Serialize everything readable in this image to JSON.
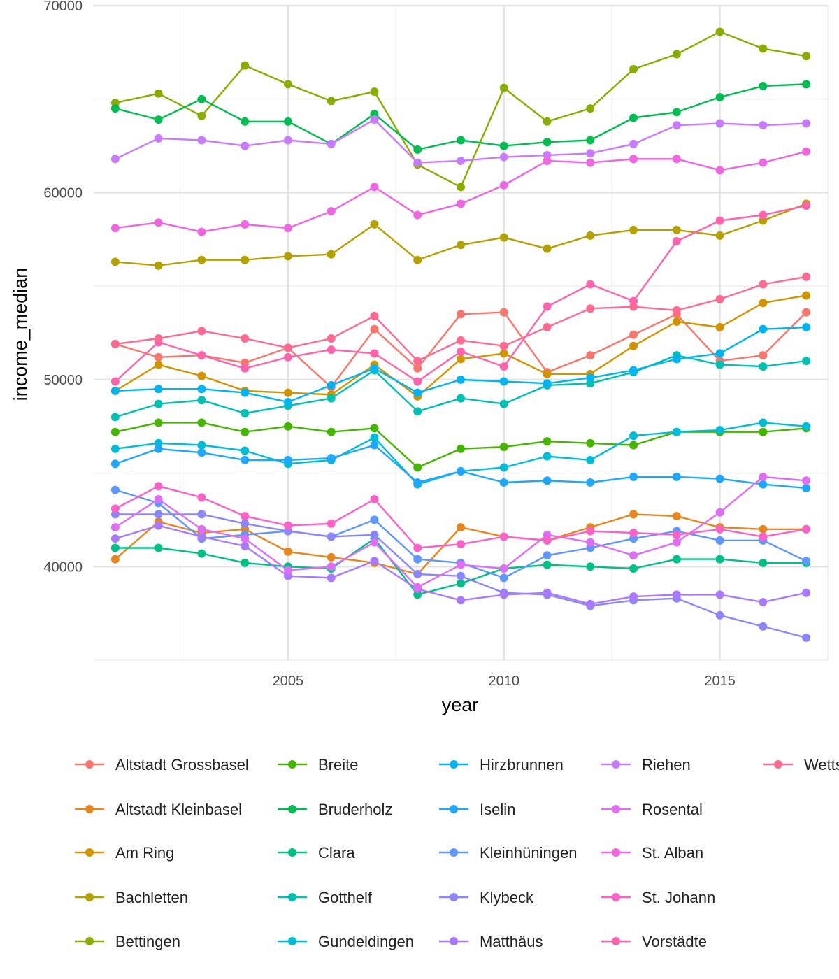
{
  "chart_data": {
    "type": "line",
    "xlabel": "year",
    "ylabel": "income_median",
    "xlim": [
      2000.5,
      2017.5
    ],
    "ylim": [
      35000,
      70000
    ],
    "x_ticks": [
      2005,
      2010,
      2015
    ],
    "x_tick_labels": [
      "2005",
      "2010",
      "2015"
    ],
    "y_ticks": [
      40000,
      50000,
      60000,
      70000
    ],
    "y_tick_labels": [
      "40000",
      "50000",
      "60000",
      "70000"
    ],
    "grid": true,
    "legend_position": "bottom",
    "x": [
      2001,
      2002,
      2003,
      2004,
      2005,
      2006,
      2007,
      2008,
      2009,
      2010,
      2011,
      2012,
      2013,
      2014,
      2015,
      2016,
      2017
    ],
    "series": [
      {
        "name": "Altstadt Grossbasel",
        "color": "#F8766D",
        "values": [
          51900,
          51200,
          51300,
          50900,
          51700,
          49600,
          52700,
          50600,
          53500,
          53600,
          50400,
          51300,
          52400,
          53500,
          51000,
          51300,
          53600
        ]
      },
      {
        "name": "Altstadt Kleinbasel",
        "color": "#E7851E",
        "values": [
          40400,
          42400,
          41800,
          42000,
          40800,
          40500,
          40200,
          39600,
          42100,
          41600,
          41400,
          42100,
          42800,
          42700,
          42100,
          42000,
          42000
        ]
      },
      {
        "name": "Am Ring",
        "color": "#D09400",
        "values": [
          49400,
          50800,
          50200,
          49400,
          49300,
          49200,
          50800,
          49100,
          51100,
          51400,
          50300,
          50300,
          51800,
          53100,
          52800,
          54100,
          54500
        ]
      },
      {
        "name": "Bachletten",
        "color": "#B2A100",
        "values": [
          56300,
          56100,
          56400,
          56400,
          56600,
          56700,
          58300,
          56400,
          57200,
          57600,
          57000,
          57700,
          58000,
          58000,
          57700,
          58500,
          59400
        ]
      },
      {
        "name": "Bettingen",
        "color": "#89AC00",
        "values": [
          64800,
          65300,
          64100,
          66800,
          65800,
          64900,
          65400,
          61500,
          60300,
          65600,
          63800,
          64500,
          66600,
          67400,
          68600,
          67700,
          67300
        ]
      },
      {
        "name": "Breite",
        "color": "#45B500",
        "values": [
          47200,
          47700,
          47700,
          47200,
          47500,
          47200,
          47400,
          45300,
          46300,
          46400,
          46700,
          46600,
          46500,
          47200,
          47200,
          47200,
          47400
        ]
      },
      {
        "name": "Bruderholz",
        "color": "#00BC51",
        "values": [
          64500,
          63900,
          65000,
          63800,
          63800,
          62600,
          64200,
          62300,
          62800,
          62500,
          62700,
          62800,
          64000,
          64300,
          65100,
          65700,
          65800
        ]
      },
      {
        "name": "Clara",
        "color": "#00C087",
        "values": [
          41000,
          41000,
          40700,
          40200,
          40000,
          39900,
          41500,
          38500,
          39100,
          39900,
          40100,
          40000,
          39900,
          40400,
          40400,
          40200,
          40200
        ]
      },
      {
        "name": "Gotthelf",
        "color": "#00C0B2",
        "values": [
          48000,
          48700,
          48900,
          48200,
          48600,
          49000,
          50500,
          48300,
          49000,
          48700,
          49700,
          49800,
          50400,
          51300,
          50800,
          50700,
          51000
        ]
      },
      {
        "name": "Gundeldingen",
        "color": "#00BCD6",
        "values": [
          46300,
          46600,
          46500,
          46200,
          45500,
          45700,
          46900,
          44400,
          45100,
          45300,
          45900,
          45700,
          47000,
          47200,
          47300,
          47700,
          47500
        ]
      },
      {
        "name": "Hirzbrunnen",
        "color": "#00B3F2",
        "values": [
          49400,
          49500,
          49500,
          49300,
          48800,
          49700,
          50600,
          49300,
          50000,
          49900,
          49800,
          50100,
          50500,
          51100,
          51400,
          52700,
          52800
        ]
      },
      {
        "name": "Iselin",
        "color": "#1FA7FF",
        "values": [
          45500,
          46300,
          46100,
          45700,
          45700,
          45800,
          46500,
          44500,
          45100,
          44500,
          44600,
          44500,
          44800,
          44800,
          44700,
          44400,
          44200
        ]
      },
      {
        "name": "Kleinhüningen",
        "color": "#5F96FF",
        "values": [
          44100,
          43400,
          41500,
          41700,
          41900,
          41600,
          42500,
          40400,
          40200,
          39400,
          40600,
          41000,
          41500,
          41900,
          41400,
          41400,
          40300
        ]
      },
      {
        "name": "Klybeck",
        "color": "#8C86FF",
        "values": [
          42800,
          42800,
          42800,
          42300,
          41900,
          41600,
          41700,
          39600,
          39500,
          38600,
          38500,
          37900,
          38200,
          38300,
          37400,
          36800,
          36200
        ]
      },
      {
        "name": "Matthäus",
        "color": "#A97AFF",
        "values": [
          41500,
          42200,
          41600,
          41100,
          39500,
          39400,
          40300,
          38800,
          38200,
          38500,
          38600,
          38000,
          38400,
          38500,
          38500,
          38100,
          38600
        ]
      },
      {
        "name": "Riehen",
        "color": "#C77CFF",
        "values": [
          61800,
          62900,
          62800,
          62500,
          62800,
          62600,
          63900,
          61600,
          61700,
          61900,
          62000,
          62100,
          62600,
          63600,
          63700,
          63600,
          63700
        ]
      },
      {
        "name": "Rosental",
        "color": "#DE6FF5",
        "values": [
          42100,
          43600,
          42000,
          41500,
          39800,
          40000,
          41300,
          38900,
          40100,
          39900,
          41700,
          41300,
          40600,
          41300,
          42900,
          44800,
          44600
        ]
      },
      {
        "name": "St. Alban",
        "color": "#EE66E0",
        "values": [
          58100,
          58400,
          57900,
          58300,
          58100,
          59000,
          60300,
          58800,
          59400,
          60400,
          61700,
          61600,
          61800,
          61800,
          61200,
          61600,
          62200
        ]
      },
      {
        "name": "St. Johann",
        "color": "#FA62C8",
        "values": [
          43100,
          44300,
          43700,
          42700,
          42200,
          42300,
          43600,
          41000,
          41200,
          41600,
          41400,
          41900,
          41800,
          41700,
          42000,
          41600,
          42000
        ]
      },
      {
        "name": "Vorstädte",
        "color": "#FF64AC",
        "values": [
          49900,
          52000,
          51300,
          50600,
          51200,
          51600,
          51400,
          49900,
          51500,
          50700,
          53900,
          55100,
          54200,
          57400,
          58500,
          58800,
          59300
        ]
      },
      {
        "name": "Wettstein",
        "color": "#FF6A92",
        "values": [
          51900,
          52200,
          52600,
          52200,
          51700,
          52200,
          53400,
          51000,
          52100,
          51800,
          52800,
          53800,
          53900,
          53700,
          54300,
          55100,
          55500
        ]
      }
    ]
  }
}
